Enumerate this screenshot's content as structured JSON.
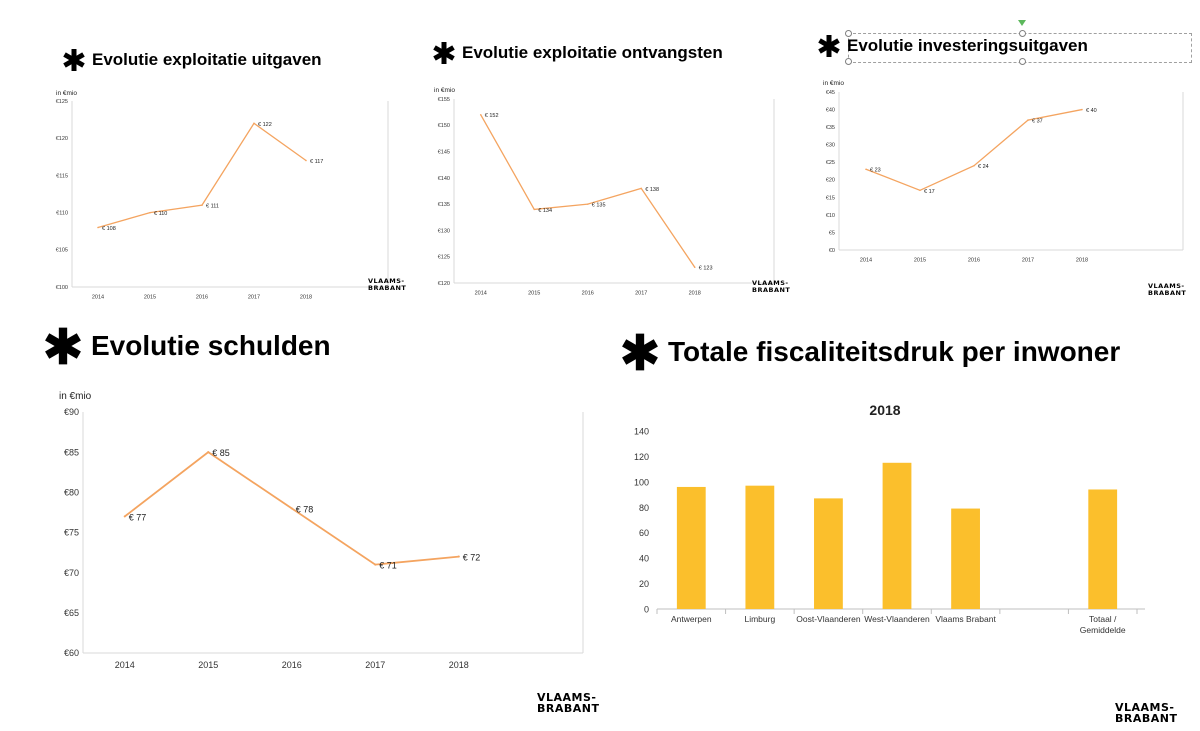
{
  "logo": {
    "line1": "VLAAMS-",
    "line2": "BRABANT"
  },
  "accent_color": "#F4A460",
  "bar_color": "#FBBF2C",
  "charts": {
    "c1": {
      "title": "Evolutie exploitatie uitgaven",
      "unit": "in €mio"
    },
    "c2": {
      "title": "Evolutie exploitatie ontvangsten",
      "unit": "in €mio"
    },
    "c3": {
      "title": "Evolutie investeringsuitgaven",
      "unit": "in €mio"
    },
    "c4": {
      "title": "Evolutie schulden",
      "unit": "in €mio"
    },
    "c5": {
      "title": "Totale fiscaliteitsdruk per inwoner",
      "subtitle": "2018"
    }
  },
  "chart_data": [
    {
      "type": "line",
      "title": "Evolutie exploitatie uitgaven",
      "ylabel": "in €mio",
      "x": [
        "2014",
        "2015",
        "2016",
        "2017",
        "2018"
      ],
      "values": [
        108,
        110,
        111,
        122,
        117
      ],
      "data_labels": [
        "€ 108",
        "€ 110",
        "€ 111",
        "€ 122",
        "€ 117"
      ],
      "ylim": [
        100,
        125
      ],
      "yticks": [
        "€100",
        "€105",
        "€110",
        "€115",
        "€120",
        "€125"
      ],
      "grid": false
    },
    {
      "type": "line",
      "title": "Evolutie exploitatie ontvangsten",
      "ylabel": "in €mio",
      "x": [
        "2014",
        "2015",
        "2016",
        "2017",
        "2018"
      ],
      "values": [
        152,
        134,
        135,
        138,
        123
      ],
      "data_labels": [
        "€ 152",
        "€ 134",
        "€ 135",
        "€ 138",
        "€ 123"
      ],
      "ylim": [
        120,
        155
      ],
      "yticks": [
        "€120",
        "€125",
        "€130",
        "€135",
        "€140",
        "€145",
        "€150",
        "€155"
      ],
      "grid": false
    },
    {
      "type": "line",
      "title": "Evolutie investeringsuitgaven",
      "ylabel": "in €mio",
      "x": [
        "2014",
        "2015",
        "2016",
        "2017",
        "2018"
      ],
      "values": [
        23,
        17,
        24,
        37,
        40
      ],
      "data_labels": [
        "€ 23",
        "€ 17",
        "€ 24",
        "€ 37",
        "€ 40"
      ],
      "ylim": [
        0,
        45
      ],
      "yticks": [
        "€0",
        "€5",
        "€10",
        "€15",
        "€20",
        "€25",
        "€30",
        "€35",
        "€40",
        "€45"
      ],
      "grid": false
    },
    {
      "type": "line",
      "title": "Evolutie schulden",
      "ylabel": "in €mio",
      "x": [
        "2014",
        "2015",
        "2016",
        "2017",
        "2018"
      ],
      "values": [
        77,
        85,
        78,
        71,
        72
      ],
      "data_labels": [
        "€ 77",
        "€ 85",
        "€ 78",
        "€ 71",
        "€ 72"
      ],
      "ylim": [
        60,
        90
      ],
      "yticks": [
        "€60",
        "€65",
        "€70",
        "€75",
        "€80",
        "€85",
        "€90"
      ],
      "grid": false
    },
    {
      "type": "bar",
      "title": "Totale fiscaliteitsdruk per inwoner",
      "subtitle": "2018",
      "categories": [
        "Antwerpen",
        "Limburg",
        "Oost-Vlaanderen",
        "West-Vlaanderen",
        "Vlaams Brabant",
        "",
        "Totaal /\nGemiddelde"
      ],
      "values": [
        96,
        97,
        87,
        115,
        79,
        null,
        94
      ],
      "ylim": [
        0,
        140
      ],
      "yticks": [
        "0",
        "20",
        "40",
        "60",
        "80",
        "100",
        "120",
        "140"
      ],
      "grid": false
    }
  ]
}
